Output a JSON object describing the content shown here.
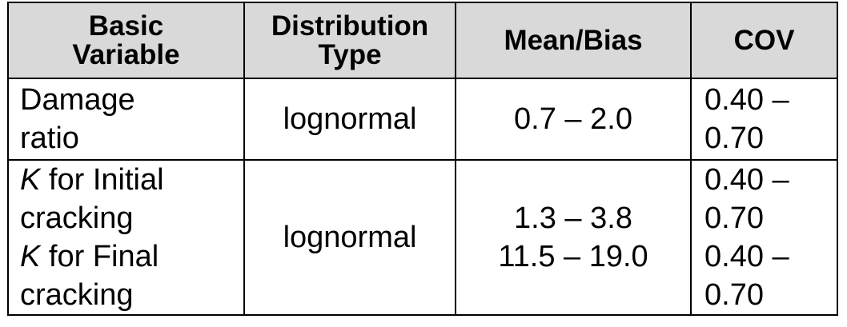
{
  "headers": {
    "col1_line1": "Basic",
    "col1_line2": "Variable",
    "col2_line1": "Distribution",
    "col2_line2": "Type",
    "col3": "Mean/Bias",
    "col4": "COV"
  },
  "rows": [
    {
      "variable_lines": [
        "Damage",
        "ratio"
      ],
      "distribution": "lognormal",
      "mean_bias": "0.7 – 2.0",
      "cov_lines": [
        "0.40 –",
        "0.70"
      ]
    },
    {
      "variable_k1": "K",
      "variable_k1_rest": " for Initial",
      "variable_k1_line2": "cracking",
      "variable_k2": "K",
      "variable_k2_rest": " for Final",
      "variable_k2_line2": "cracking",
      "distribution": "lognormal",
      "mean_bias_lines": [
        "1.3  – 3.8",
        "11.5 – 19.0"
      ],
      "cov_lines": [
        "0.40 –",
        "0.70",
        "0.40 –",
        "0.70"
      ]
    }
  ]
}
